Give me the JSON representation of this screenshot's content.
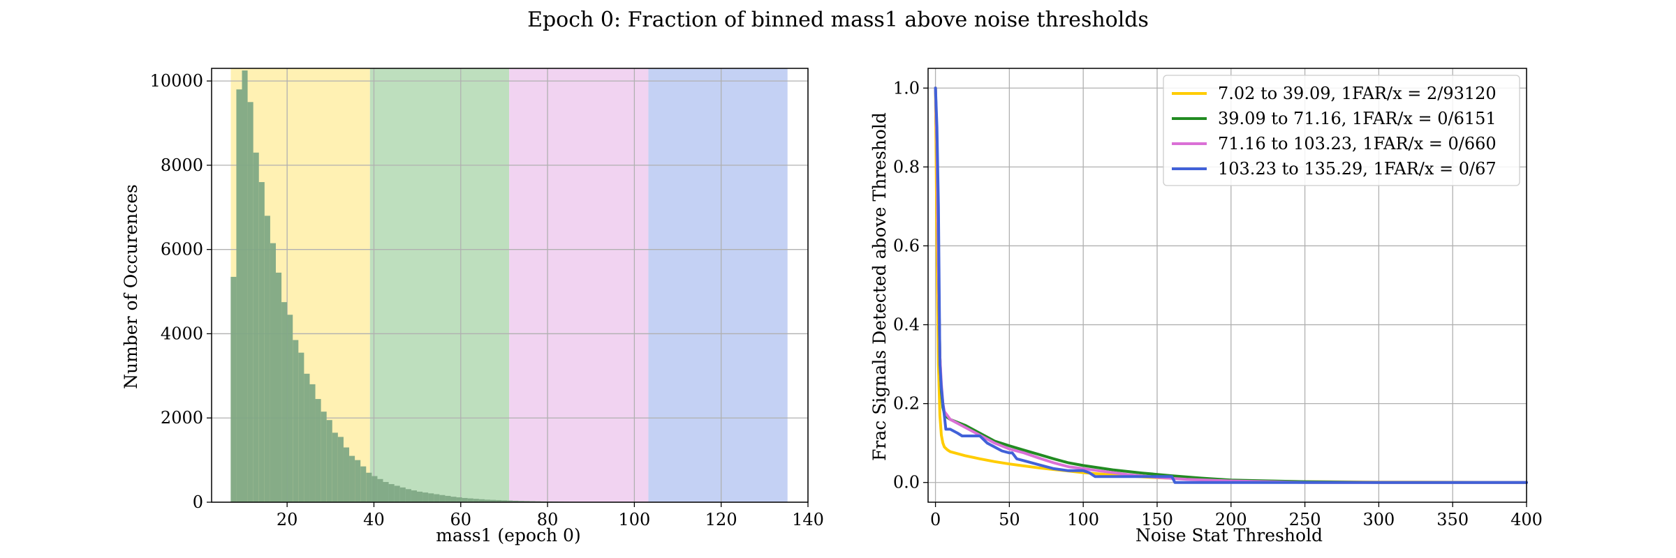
{
  "figure": {
    "suptitle": "Epoch 0: Fraction of binned mass1 above noise thresholds"
  },
  "chart_data": [
    {
      "type": "bar",
      "subtype": "histogram",
      "xlabel": "mass1 (epoch 0)",
      "ylabel": "Number of Occurences",
      "xlim": [
        2.6,
        140
      ],
      "ylim": [
        0,
        10300
      ],
      "xticks": [
        20,
        40,
        60,
        80,
        100,
        120,
        140
      ],
      "yticks": [
        0,
        2000,
        4000,
        6000,
        8000,
        10000
      ],
      "grid": true,
      "bin_edges": [
        7.0,
        8.3,
        9.6,
        10.9,
        12.2,
        13.5,
        14.8,
        16.1,
        17.4,
        18.7,
        20.0,
        21.3,
        22.6,
        23.9,
        25.2,
        26.5,
        27.8,
        29.1,
        30.4,
        31.7,
        33.0,
        34.3,
        35.6,
        36.9,
        38.2,
        39.5,
        40.8,
        42.1,
        43.4,
        44.7,
        46.0,
        47.3,
        48.6,
        49.9,
        51.2,
        52.5,
        53.8,
        55.1,
        56.4,
        57.7,
        59.0,
        60.3,
        61.6,
        62.9,
        64.2,
        65.5,
        66.8,
        68.1,
        69.4,
        70.7,
        72.0,
        73.3,
        74.6,
        75.9,
        77.2,
        78.5,
        79.8,
        81.1,
        82.4,
        83.7,
        85.0,
        86.3,
        87.6,
        88.9,
        90.2,
        91.5,
        92.8,
        94.1,
        95.4,
        96.7,
        98.0,
        99.3,
        100.6
      ],
      "values": [
        5350,
        9800,
        10250,
        9500,
        8300,
        7600,
        6800,
        6150,
        5450,
        4750,
        4450,
        3850,
        3550,
        3050,
        2800,
        2450,
        2150,
        1950,
        1650,
        1550,
        1300,
        1100,
        1000,
        850,
        700,
        620,
        550,
        480,
        430,
        390,
        350,
        310,
        280,
        250,
        230,
        210,
        190,
        170,
        150,
        130,
        115,
        100,
        90,
        80,
        70,
        60,
        55,
        50,
        45,
        40,
        35,
        30,
        27,
        24,
        21,
        18,
        16,
        14,
        12,
        10,
        9,
        8,
        7,
        6,
        5,
        4,
        3,
        3,
        2,
        2,
        1,
        1
      ],
      "bar_color": "#7fa885",
      "bands": [
        {
          "from": 7.02,
          "to": 39.09,
          "color": "#fff1b3"
        },
        {
          "from": 39.09,
          "to": 71.16,
          "color": "#bedfbe"
        },
        {
          "from": 71.16,
          "to": 103.23,
          "color": "#f1d3f1"
        },
        {
          "from": 103.23,
          "to": 135.29,
          "color": "#c4d1f4"
        }
      ]
    },
    {
      "type": "line",
      "xlabel": "Noise Stat Threshold",
      "ylabel": "Frac Signals Detected above Threshold",
      "xlim": [
        -5,
        400
      ],
      "ylim": [
        -0.05,
        1.05
      ],
      "xticks": [
        0,
        50,
        100,
        150,
        200,
        250,
        300,
        350,
        400
      ],
      "yticks": [
        0.0,
        0.2,
        0.4,
        0.6,
        0.8,
        1.0
      ],
      "ytick_labels": [
        "0.0",
        "0.2",
        "0.4",
        "0.6",
        "0.8",
        "1.0"
      ],
      "grid": true,
      "legend_position": "top-right",
      "series": [
        {
          "name": "7.02 to 39.09, 1FAR/x = 2/93120",
          "color": "#ffcc00",
          "x": [
            0,
            1,
            2,
            3,
            4,
            5,
            6,
            8,
            10,
            15,
            20,
            30,
            40,
            50,
            60,
            70,
            80,
            90,
            100,
            120,
            150,
            200,
            250,
            300,
            350,
            400
          ],
          "y": [
            1.0,
            0.6,
            0.3,
            0.17,
            0.12,
            0.1,
            0.09,
            0.083,
            0.078,
            0.073,
            0.068,
            0.06,
            0.053,
            0.047,
            0.042,
            0.037,
            0.033,
            0.029,
            0.025,
            0.019,
            0.012,
            0.005,
            0.002,
            0.001,
            0.0005,
            0.0
          ]
        },
        {
          "name": "39.09 to 71.16, 1FAR/x = 0/6151",
          "color": "#228b22",
          "x": [
            0,
            1,
            2,
            3,
            4,
            5,
            6,
            8,
            10,
            20,
            30,
            40,
            50,
            60,
            70,
            80,
            90,
            100,
            120,
            140,
            160,
            180,
            200,
            250,
            300,
            350,
            400
          ],
          "y": [
            1.0,
            0.85,
            0.55,
            0.32,
            0.23,
            0.19,
            0.175,
            0.165,
            0.16,
            0.145,
            0.125,
            0.105,
            0.093,
            0.082,
            0.071,
            0.06,
            0.05,
            0.043,
            0.032,
            0.024,
            0.017,
            0.011,
            0.006,
            0.002,
            0.0,
            0.0,
            0.0
          ]
        },
        {
          "name": "71.16 to 103.23, 1FAR/x = 0/660",
          "color": "#da70d6",
          "x": [
            0,
            1,
            2,
            3,
            4,
            5,
            6,
            8,
            10,
            20,
            30,
            40,
            50,
            60,
            70,
            80,
            90,
            100,
            110,
            130,
            150,
            170,
            200,
            250,
            300,
            350,
            400
          ],
          "y": [
            1.0,
            0.85,
            0.55,
            0.32,
            0.25,
            0.2,
            0.18,
            0.17,
            0.16,
            0.14,
            0.12,
            0.1,
            0.085,
            0.075,
            0.062,
            0.05,
            0.04,
            0.035,
            0.03,
            0.02,
            0.013,
            0.008,
            0.004,
            0.0,
            0.0,
            0.0,
            0.0
          ]
        },
        {
          "name": "103.23 to 135.29, 1FAR/x = 0/67",
          "color": "#4161d8",
          "x": [
            0,
            1,
            2,
            3,
            4,
            5,
            6,
            7,
            10,
            15,
            18,
            22,
            30,
            35,
            40,
            45,
            50,
            52,
            55,
            60,
            70,
            80,
            90,
            100,
            104,
            108,
            120,
            130,
            140,
            150,
            160,
            162,
            165,
            200,
            250,
            300,
            350,
            400
          ],
          "y": [
            1.0,
            0.9,
            0.7,
            0.3,
            0.24,
            0.2,
            0.17,
            0.135,
            0.135,
            0.125,
            0.118,
            0.118,
            0.118,
            0.1,
            0.09,
            0.08,
            0.075,
            0.075,
            0.06,
            0.055,
            0.045,
            0.035,
            0.03,
            0.03,
            0.025,
            0.015,
            0.015,
            0.015,
            0.015,
            0.015,
            0.015,
            0.0,
            0.0,
            0.0,
            0.0,
            0.0,
            0.0,
            0.0
          ]
        }
      ]
    }
  ]
}
